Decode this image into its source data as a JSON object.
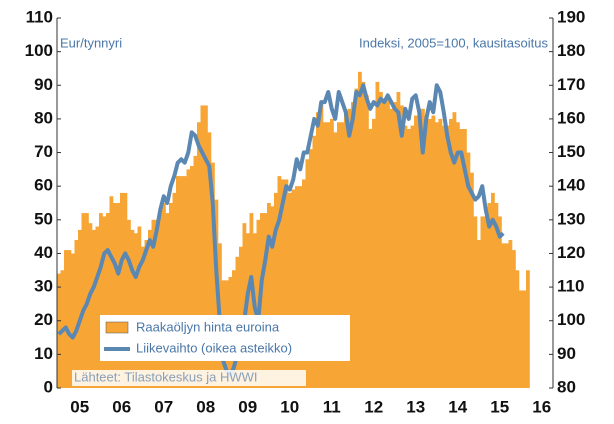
{
  "chart_data": {
    "type": "bar_line",
    "left_label": "Eur/tynnyri",
    "right_label": "Indeksi, 2005=100, kausitasoitus",
    "source": "Lähteet: Tilastokeskus ja HWWI",
    "categories": [
      null,
      null,
      null,
      null,
      null,
      null,
      "05",
      null,
      null,
      null,
      null,
      null,
      null,
      null,
      null,
      null,
      null,
      null,
      "06",
      null,
      null,
      null,
      null,
      null,
      null,
      null,
      null,
      null,
      null,
      null,
      "07",
      null,
      null,
      null,
      null,
      null,
      null,
      null,
      null,
      null,
      null,
      null,
      "08",
      null,
      null,
      null,
      null,
      null,
      null,
      null,
      null,
      null,
      null,
      null,
      "09",
      null,
      null,
      null,
      null,
      null,
      null,
      null,
      null,
      null,
      null,
      null,
      "10",
      null,
      null,
      null,
      null,
      null,
      null,
      null,
      null,
      null,
      null,
      null,
      "11",
      null,
      null,
      null,
      null,
      null,
      null,
      null,
      null,
      null,
      null,
      null,
      "12",
      null,
      null,
      null,
      null,
      null,
      null,
      null,
      null,
      null,
      null,
      null,
      "13",
      null,
      null,
      null,
      null,
      null,
      null,
      null,
      null,
      null,
      null,
      null,
      "14",
      null,
      null,
      null,
      null,
      null,
      null,
      null,
      null,
      null,
      null,
      null,
      "15",
      null,
      null,
      null,
      null,
      null,
      null,
      null,
      null,
      null,
      null,
      null,
      "16"
    ],
    "series": [
      {
        "name": "Raakaöljyn hinta euroina",
        "color": "#f7a535",
        "values": [
          34,
          35,
          41,
          41,
          40,
          44,
          47,
          52,
          52,
          49,
          47,
          48,
          52,
          51,
          52,
          57,
          55,
          55,
          58,
          58,
          50,
          47,
          46,
          48,
          42,
          44,
          47,
          50,
          50,
          52,
          55,
          52,
          55,
          58,
          63,
          63,
          63,
          65,
          66,
          69,
          79,
          84,
          84,
          76,
          67,
          56,
          43,
          32,
          32,
          33,
          35,
          39,
          42,
          49,
          46,
          52,
          46,
          50,
          52,
          52,
          55,
          54,
          58,
          63,
          62,
          62,
          58,
          59,
          60,
          60,
          62,
          68,
          71,
          75,
          82,
          85,
          79,
          79,
          80,
          76,
          79,
          79,
          82,
          83,
          85,
          89,
          94,
          91,
          87,
          77,
          80,
          91,
          88,
          86,
          86,
          83,
          85,
          88,
          84,
          78,
          77,
          78,
          81,
          83,
          83,
          81,
          80,
          81,
          79,
          80,
          78,
          78,
          80,
          82,
          79,
          77,
          77,
          70,
          64,
          51,
          44,
          51,
          51,
          55,
          58,
          55,
          51,
          43,
          43,
          44,
          41,
          35,
          29,
          29,
          35,
          null,
          null,
          null,
          null
        ]
      },
      {
        "name": "Liikevaihto (oikea asteikko)",
        "color": "#5b87b3",
        "axis": "y2",
        "values": [
          96,
          97,
          98,
          96,
          95,
          97,
          100,
          103,
          105,
          108,
          110,
          113,
          116,
          120,
          121,
          119,
          117,
          114,
          118,
          120,
          118,
          115,
          113,
          116,
          118,
          121,
          124,
          122,
          127,
          133,
          137,
          135,
          140,
          143,
          147,
          148,
          147,
          150,
          156,
          155,
          152,
          150,
          148,
          146,
          135,
          115,
          100,
          88,
          85,
          84,
          86,
          90,
          94,
          100,
          108,
          113,
          104,
          100,
          112,
          118,
          125,
          122,
          127,
          130,
          135,
          140,
          139,
          142,
          148,
          145,
          150,
          150,
          155,
          160,
          158,
          165,
          165,
          168,
          163,
          160,
          168,
          165,
          162,
          155,
          160,
          168,
          167,
          170,
          166,
          163,
          165,
          164,
          166,
          165,
          167,
          165,
          163,
          162,
          155,
          163,
          160,
          166,
          167,
          162,
          150,
          160,
          165,
          162,
          170,
          168,
          162,
          155,
          150,
          147,
          150,
          150,
          145,
          140,
          138,
          136,
          137,
          140,
          133,
          128,
          130,
          128,
          125,
          126,
          null,
          null,
          null,
          null,
          null,
          null,
          null,
          null,
          null,
          null,
          null
        ]
      }
    ],
    "ylim": [
      0,
      110
    ],
    "yticks": [
      0,
      10,
      20,
      30,
      40,
      50,
      60,
      70,
      80,
      90,
      100,
      110
    ],
    "y2lim": [
      80,
      190
    ],
    "y2ticks": [
      80,
      90,
      100,
      110,
      120,
      130,
      140,
      150,
      160,
      170,
      180,
      190
    ]
  }
}
